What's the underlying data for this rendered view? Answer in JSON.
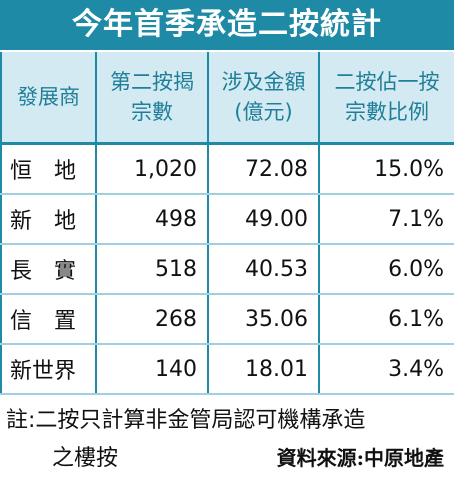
{
  "header": {
    "title": "今年首季承造二按統計"
  },
  "table": {
    "columns": [
      [
        "發展商"
      ],
      [
        "第二按揭",
        "宗數"
      ],
      [
        "涉及金額",
        "(億元)"
      ],
      [
        "二按佔一按",
        "宗數比例"
      ]
    ],
    "rows": [
      [
        "恒　地",
        "1,020",
        "72.08",
        "15.0%"
      ],
      [
        "新　地",
        "498",
        "49.00",
        "7.1%"
      ],
      [
        "長　實",
        "518",
        "40.53",
        "6.0%"
      ],
      [
        "信　置",
        "268",
        "35.06",
        "6.1%"
      ],
      [
        "新世界",
        "140",
        "18.01",
        "3.4%"
      ]
    ]
  },
  "footer": {
    "note_line1": "註:二按只計算非金管局認可機構承造",
    "note_line2": "之樓按",
    "source": "資料來源:中原地產"
  }
}
